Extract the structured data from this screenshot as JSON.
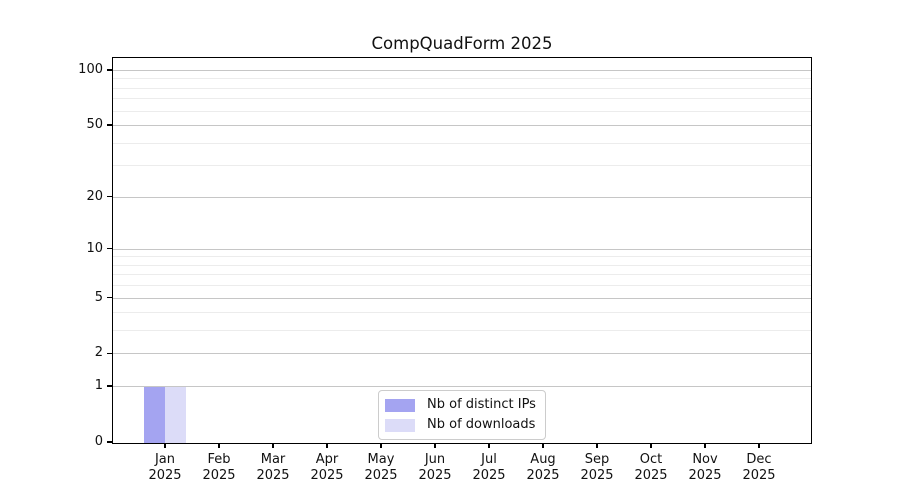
{
  "chart_data": {
    "type": "bar",
    "title": "CompQuadForm 2025",
    "categories": [
      "Jan",
      "Feb",
      "Mar",
      "Apr",
      "May",
      "Jun",
      "Jul",
      "Aug",
      "Sep",
      "Oct",
      "Nov",
      "Dec"
    ],
    "tick_year": "2025",
    "series": [
      {
        "name": "Nb of distinct IPs",
        "color": "#a4a4f1",
        "values": [
          1,
          0,
          0,
          0,
          0,
          0,
          0,
          0,
          0,
          0,
          0,
          0
        ]
      },
      {
        "name": "Nb of downloads",
        "color": "#dcdcf8",
        "values": [
          1,
          0,
          0,
          0,
          0,
          0,
          0,
          0,
          0,
          0,
          0,
          0
        ]
      }
    ],
    "xlabel": "",
    "ylabel": "",
    "yscale": "log1p",
    "ylim": [
      0,
      116
    ],
    "yticks_major": [
      0,
      1,
      2,
      5,
      10,
      20,
      50,
      100
    ],
    "yticks_minor": [
      3,
      4,
      6,
      7,
      8,
      9,
      30,
      40,
      60,
      70,
      80,
      90
    ],
    "grid": true,
    "legend_position": "lower center",
    "colors": {
      "grid_major": "#c6c6c6",
      "grid_minor": "#ececec",
      "axis": "#000000",
      "text": "#111111",
      "background": "#ffffff"
    }
  }
}
